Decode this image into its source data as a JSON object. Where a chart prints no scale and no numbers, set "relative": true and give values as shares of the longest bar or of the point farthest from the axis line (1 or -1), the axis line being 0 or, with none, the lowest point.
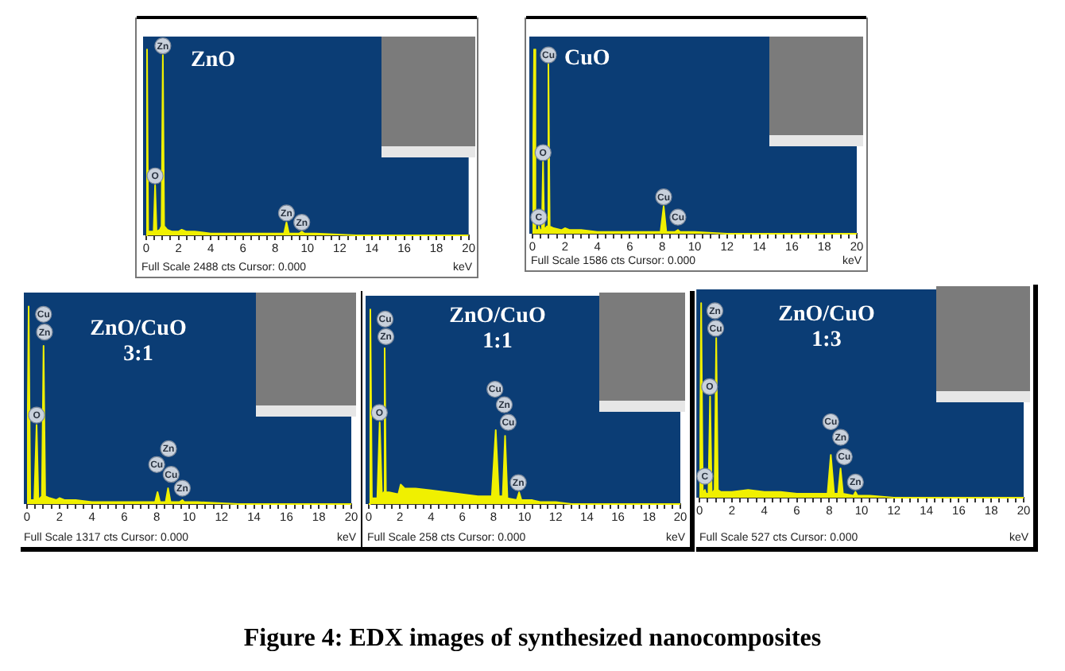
{
  "chart_data": [
    {
      "type": "area",
      "title": "ZnO",
      "xlabel": "keV",
      "relative": true,
      "color": "#f0f000",
      "x": [
        0,
        0.05,
        0.12,
        0.3,
        0.46,
        0.55,
        0.64,
        0.85,
        0.95,
        1.03,
        1.11,
        1.3,
        1.6,
        2.0,
        2.2,
        2.5,
        3.0,
        4.0,
        5.0,
        6.0,
        7.0,
        8.0,
        8.55,
        8.7,
        8.85,
        9.5,
        9.65,
        9.8,
        10.5,
        13.0,
        20.0
      ],
      "values": [
        0,
        1.0,
        0.02,
        0.02,
        0.02,
        0.27,
        0.02,
        0.03,
        0.05,
        0.97,
        0.05,
        0.03,
        0.02,
        0.02,
        0.03,
        0.02,
        0.02,
        0.01,
        0.01,
        0.01,
        0.01,
        0.01,
        0.01,
        0.07,
        0.01,
        0.01,
        0.02,
        0.01,
        0.01,
        0,
        0
      ],
      "xlim": [
        0,
        20
      ],
      "xticks": [
        0,
        {
          "value": 0.5,
          "label": null
        },
        {
          "value": 1,
          "label": null
        },
        {
          "value": 1.5,
          "label": null
        },
        2,
        {
          "value": 2.5,
          "label": null
        },
        {
          "value": 3,
          "label": null
        },
        {
          "value": 3.5,
          "label": null
        },
        4,
        {
          "value": 4.5,
          "label": null
        },
        {
          "value": 5,
          "label": null
        },
        {
          "value": 5.5,
          "label": null
        },
        6,
        {
          "value": 6.5,
          "label": null
        },
        {
          "value": 7,
          "label": null
        },
        {
          "value": 7.5,
          "label": null
        },
        8,
        {
          "value": 8.5,
          "label": null
        },
        {
          "value": 9,
          "label": null
        },
        {
          "value": 9.5,
          "label": null
        },
        10,
        {
          "value": 10.5,
          "label": null
        },
        {
          "value": 11,
          "label": null
        },
        {
          "value": 11.5,
          "label": null
        },
        12,
        {
          "value": 12.5,
          "label": null
        },
        {
          "value": 13,
          "label": null
        },
        {
          "value": 13.5,
          "label": null
        },
        14,
        {
          "value": 14.5,
          "label": null
        },
        {
          "value": 15,
          "label": null
        },
        {
          "value": 15.5,
          "label": null
        },
        16,
        {
          "value": 16.5,
          "label": null
        },
        {
          "value": 17,
          "label": null
        },
        {
          "value": 17.5,
          "label": null
        },
        18,
        {
          "value": 18.5,
          "label": null
        },
        {
          "value": 19,
          "label": null
        },
        {
          "value": 19.5,
          "label": null
        },
        20
      ],
      "annotations": [
        "Full Scale 2488 cts Cursor: 0.000",
        {
          "text": "Zn",
          "x": 1.03,
          "y": 1.02
        },
        {
          "text": "O",
          "x": 0.55,
          "y": 0.32
        },
        {
          "text": "Zn",
          "x": 8.7,
          "y": 0.12
        },
        {
          "text": "Zn",
          "x": 9.65,
          "y": 0.07
        }
      ]
    },
    {
      "type": "area",
      "title": "CuO",
      "xlabel": "keV",
      "relative": true,
      "color": "#f0f000",
      "x": [
        0,
        0.1,
        0.18,
        0.32,
        0.39,
        0.46,
        0.58,
        0.65,
        0.72,
        0.9,
        0.98,
        1.06,
        1.3,
        1.8,
        2.0,
        2.3,
        3.0,
        4.0,
        5.0,
        6.0,
        7.0,
        7.9,
        8.09,
        8.25,
        8.8,
        8.97,
        9.1,
        10.0,
        12.0,
        20.0
      ],
      "values": [
        0,
        1.0,
        0.02,
        0.02,
        0.04,
        0.02,
        0.02,
        0.39,
        0.02,
        0.04,
        0.92,
        0.04,
        0.03,
        0.02,
        0.03,
        0.02,
        0.02,
        0.01,
        0.01,
        0.01,
        0.01,
        0.01,
        0.15,
        0.01,
        0.01,
        0.02,
        0.01,
        0.01,
        0,
        0
      ],
      "xlim": [
        0,
        20
      ],
      "xticks": [
        0,
        {
          "value": 0.5,
          "label": null
        },
        {
          "value": 1,
          "label": null
        },
        {
          "value": 1.5,
          "label": null
        },
        2,
        {
          "value": 2.5,
          "label": null
        },
        {
          "value": 3,
          "label": null
        },
        {
          "value": 3.5,
          "label": null
        },
        4,
        {
          "value": 4.5,
          "label": null
        },
        {
          "value": 5,
          "label": null
        },
        {
          "value": 5.5,
          "label": null
        },
        6,
        {
          "value": 6.5,
          "label": null
        },
        {
          "value": 7,
          "label": null
        },
        {
          "value": 7.5,
          "label": null
        },
        8,
        {
          "value": 8.5,
          "label": null
        },
        {
          "value": 9,
          "label": null
        },
        {
          "value": 9.5,
          "label": null
        },
        10,
        {
          "value": 10.5,
          "label": null
        },
        {
          "value": 11,
          "label": null
        },
        {
          "value": 11.5,
          "label": null
        },
        12,
        {
          "value": 12.5,
          "label": null
        },
        {
          "value": 13,
          "label": null
        },
        {
          "value": 13.5,
          "label": null
        },
        14,
        {
          "value": 14.5,
          "label": null
        },
        {
          "value": 15,
          "label": null
        },
        {
          "value": 15.5,
          "label": null
        },
        16,
        {
          "value": 16.5,
          "label": null
        },
        {
          "value": 17,
          "label": null
        },
        {
          "value": 17.5,
          "label": null
        },
        18,
        {
          "value": 18.5,
          "label": null
        },
        {
          "value": 19,
          "label": null
        },
        {
          "value": 19.5,
          "label": null
        },
        20
      ],
      "annotations": [
        "Full Scale 1586 cts Cursor: 0.000",
        {
          "text": "Cu",
          "x": 0.98,
          "y": 0.97
        },
        {
          "text": "O",
          "x": 0.65,
          "y": 0.44
        },
        {
          "text": "C",
          "x": 0.39,
          "y": 0.09
        },
        {
          "text": "Cu",
          "x": 8.09,
          "y": 0.2
        },
        {
          "text": "Cu",
          "x": 8.97,
          "y": 0.09
        }
      ]
    },
    {
      "type": "area",
      "title": "ZnO/CuO\n3:1",
      "xlabel": "keV",
      "relative": true,
      "color": "#f0f000",
      "x": [
        0,
        0.1,
        0.2,
        0.45,
        0.59,
        0.7,
        0.92,
        1.02,
        1.12,
        1.4,
        1.8,
        2.0,
        2.3,
        3.0,
        4.0,
        5.0,
        6.0,
        7.0,
        7.9,
        8.05,
        8.2,
        8.55,
        8.7,
        8.85,
        9.4,
        9.58,
        9.7,
        10.5,
        13.0,
        20.0
      ],
      "values": [
        0,
        1.0,
        0.02,
        0.02,
        0.4,
        0.02,
        0.04,
        0.8,
        0.04,
        0.03,
        0.02,
        0.03,
        0.02,
        0.02,
        0.01,
        0.01,
        0.01,
        0.01,
        0.01,
        0.06,
        0.01,
        0.01,
        0.08,
        0.01,
        0.01,
        0.02,
        0.01,
        0.01,
        0,
        0
      ],
      "xlim": [
        0,
        20
      ],
      "xticks": [
        0,
        {
          "value": 0.5,
          "label": null
        },
        {
          "value": 1,
          "label": null
        },
        {
          "value": 1.5,
          "label": null
        },
        2,
        {
          "value": 2.5,
          "label": null
        },
        {
          "value": 3,
          "label": null
        },
        {
          "value": 3.5,
          "label": null
        },
        4,
        {
          "value": 4.5,
          "label": null
        },
        {
          "value": 5,
          "label": null
        },
        {
          "value": 5.5,
          "label": null
        },
        6,
        {
          "value": 6.5,
          "label": null
        },
        {
          "value": 7,
          "label": null
        },
        {
          "value": 7.5,
          "label": null
        },
        8,
        {
          "value": 8.5,
          "label": null
        },
        {
          "value": 9,
          "label": null
        },
        {
          "value": 9.5,
          "label": null
        },
        10,
        {
          "value": 10.5,
          "label": null
        },
        {
          "value": 11,
          "label": null
        },
        {
          "value": 11.5,
          "label": null
        },
        12,
        {
          "value": 12.5,
          "label": null
        },
        {
          "value": 13,
          "label": null
        },
        {
          "value": 13.5,
          "label": null
        },
        14,
        {
          "value": 14.5,
          "label": null
        },
        {
          "value": 15,
          "label": null
        },
        {
          "value": 15.5,
          "label": null
        },
        16,
        {
          "value": 16.5,
          "label": null
        },
        {
          "value": 17,
          "label": null
        },
        {
          "value": 17.5,
          "label": null
        },
        18,
        {
          "value": 18.5,
          "label": null
        },
        {
          "value": 19,
          "label": null
        },
        {
          "value": 19.5,
          "label": null
        },
        20
      ],
      "annotations": [
        "Full Scale 1317 cts Cursor: 0.000",
        {
          "text": "Cu",
          "x": 1.02,
          "y": 0.96
        },
        {
          "text": "Zn",
          "x": 1.08,
          "y": 0.87
        },
        {
          "text": "O",
          "x": 0.59,
          "y": 0.45
        },
        {
          "text": "Zn",
          "x": 8.73,
          "y": 0.28
        },
        {
          "text": "Cu",
          "x": 8.0,
          "y": 0.2
        },
        {
          "text": "Cu",
          "x": 8.89,
          "y": 0.15
        },
        {
          "text": "Zn",
          "x": 9.58,
          "y": 0.08
        }
      ]
    },
    {
      "type": "area",
      "title": "ZnO/CuO\n1:1",
      "xlabel": "keV",
      "relative": true,
      "color": "#f0f000",
      "x": [
        0,
        0.1,
        0.2,
        0.55,
        0.7,
        0.85,
        0.95,
        1.02,
        1.1,
        1.3,
        1.9,
        2.05,
        2.3,
        3.0,
        4.0,
        5.0,
        6.0,
        7.0,
        7.9,
        8.15,
        8.35,
        8.6,
        8.75,
        8.9,
        9.5,
        9.65,
        9.8,
        10.5,
        11.0,
        12.0,
        13.0,
        20.0
      ],
      "values": [
        0,
        1.0,
        0.03,
        0.03,
        0.42,
        0.03,
        0.06,
        0.8,
        0.06,
        0.06,
        0.05,
        0.1,
        0.08,
        0.08,
        0.07,
        0.06,
        0.05,
        0.04,
        0.04,
        0.38,
        0.04,
        0.04,
        0.35,
        0.03,
        0.02,
        0.06,
        0.02,
        0.02,
        0.01,
        0.01,
        0,
        0
      ],
      "xlim": [
        0,
        20
      ],
      "xticks": [
        0,
        {
          "value": 0.5,
          "label": null
        },
        {
          "value": 1,
          "label": null
        },
        {
          "value": 1.5,
          "label": null
        },
        2,
        {
          "value": 2.5,
          "label": null
        },
        {
          "value": 3,
          "label": null
        },
        {
          "value": 3.5,
          "label": null
        },
        4,
        {
          "value": 4.5,
          "label": null
        },
        {
          "value": 5,
          "label": null
        },
        {
          "value": 5.5,
          "label": null
        },
        6,
        {
          "value": 6.5,
          "label": null
        },
        {
          "value": 7,
          "label": null
        },
        {
          "value": 7.5,
          "label": null
        },
        8,
        {
          "value": 8.5,
          "label": null
        },
        {
          "value": 9,
          "label": null
        },
        {
          "value": 9.5,
          "label": null
        },
        10,
        {
          "value": 10.5,
          "label": null
        },
        {
          "value": 11,
          "label": null
        },
        {
          "value": 11.5,
          "label": null
        },
        12,
        {
          "value": 12.5,
          "label": null
        },
        {
          "value": 13,
          "label": null
        },
        {
          "value": 13.5,
          "label": null
        },
        14,
        {
          "value": 14.5,
          "label": null
        },
        {
          "value": 15,
          "label": null
        },
        {
          "value": 15.5,
          "label": null
        },
        16,
        {
          "value": 16.5,
          "label": null
        },
        {
          "value": 17,
          "label": null
        },
        {
          "value": 17.5,
          "label": null
        },
        18,
        {
          "value": 18.5,
          "label": null
        },
        {
          "value": 19,
          "label": null
        },
        {
          "value": 19.5,
          "label": null
        },
        20
      ],
      "annotations": [
        "Full Scale 258 cts Cursor: 0.000",
        {
          "text": "Cu",
          "x": 1.05,
          "y": 0.95
        },
        {
          "text": "Zn",
          "x": 1.1,
          "y": 0.86
        },
        {
          "text": "O",
          "x": 0.68,
          "y": 0.47
        },
        {
          "text": "Cu",
          "x": 8.1,
          "y": 0.59
        },
        {
          "text": "Zn",
          "x": 8.7,
          "y": 0.51
        },
        {
          "text": "Cu",
          "x": 8.95,
          "y": 0.42
        },
        {
          "text": "Zn",
          "x": 9.6,
          "y": 0.11
        }
      ]
    },
    {
      "type": "area",
      "title": "ZnO/CuO\n1:3",
      "xlabel": "keV",
      "relative": true,
      "color": "#f0f000",
      "x": [
        0,
        0.1,
        0.2,
        0.28,
        0.33,
        0.4,
        0.55,
        0.65,
        0.75,
        0.93,
        1.03,
        1.13,
        1.3,
        2.0,
        3.0,
        4.0,
        5.0,
        6.0,
        7.0,
        7.9,
        8.1,
        8.3,
        8.55,
        8.7,
        8.85,
        9.5,
        9.62,
        9.75,
        10.5,
        12.0,
        20.0
      ],
      "values": [
        0,
        1.0,
        0.02,
        0.02,
        0.04,
        0.02,
        0.02,
        0.52,
        0.02,
        0.04,
        0.82,
        0.04,
        0.03,
        0.03,
        0.04,
        0.03,
        0.03,
        0.02,
        0.02,
        0.02,
        0.22,
        0.02,
        0.02,
        0.15,
        0.02,
        0.01,
        0.03,
        0.01,
        0.01,
        0,
        0
      ],
      "xlim": [
        0,
        20
      ],
      "xticks": [
        0,
        {
          "value": 0.5,
          "label": null
        },
        {
          "value": 1,
          "label": null
        },
        {
          "value": 1.5,
          "label": null
        },
        2,
        {
          "value": 2.5,
          "label": null
        },
        {
          "value": 3,
          "label": null
        },
        {
          "value": 3.5,
          "label": null
        },
        4,
        {
          "value": 4.5,
          "label": null
        },
        {
          "value": 5,
          "label": null
        },
        {
          "value": 5.5,
          "label": null
        },
        6,
        {
          "value": 6.5,
          "label": null
        },
        {
          "value": 7,
          "label": null
        },
        {
          "value": 7.5,
          "label": null
        },
        8,
        {
          "value": 8.5,
          "label": null
        },
        {
          "value": 9,
          "label": null
        },
        {
          "value": 9.5,
          "label": null
        },
        10,
        {
          "value": 10.5,
          "label": null
        },
        {
          "value": 11,
          "label": null
        },
        {
          "value": 11.5,
          "label": null
        },
        12,
        {
          "value": 12.5,
          "label": null
        },
        {
          "value": 13,
          "label": null
        },
        {
          "value": 13.5,
          "label": null
        },
        14,
        {
          "value": 14.5,
          "label": null
        },
        {
          "value": 15,
          "label": null
        },
        {
          "value": 15.5,
          "label": null
        },
        16,
        {
          "value": 16.5,
          "label": null
        },
        {
          "value": 17,
          "label": null
        },
        {
          "value": 17.5,
          "label": null
        },
        18,
        {
          "value": 18.5,
          "label": null
        },
        {
          "value": 19,
          "label": null
        },
        {
          "value": 19.5,
          "label": null
        },
        20
      ],
      "annotations": [
        "Full Scale 527 cts Cursor: 0.000",
        {
          "text": "Zn",
          "x": 0.95,
          "y": 0.96
        },
        {
          "text": "Cu",
          "x": 1.0,
          "y": 0.87
        },
        {
          "text": "O",
          "x": 0.62,
          "y": 0.57
        },
        {
          "text": "C",
          "x": 0.33,
          "y": 0.11
        },
        {
          "text": "Cu",
          "x": 8.1,
          "y": 0.39
        },
        {
          "text": "Zn",
          "x": 8.71,
          "y": 0.31
        },
        {
          "text": "Cu",
          "x": 8.93,
          "y": 0.21
        },
        {
          "text": "Zn",
          "x": 9.62,
          "y": 0.08
        }
      ]
    },
    {
      "type": "other",
      "annotations": [
        "Figure 4: EDX images of synthesized nanocomposites"
      ]
    }
  ]
}
